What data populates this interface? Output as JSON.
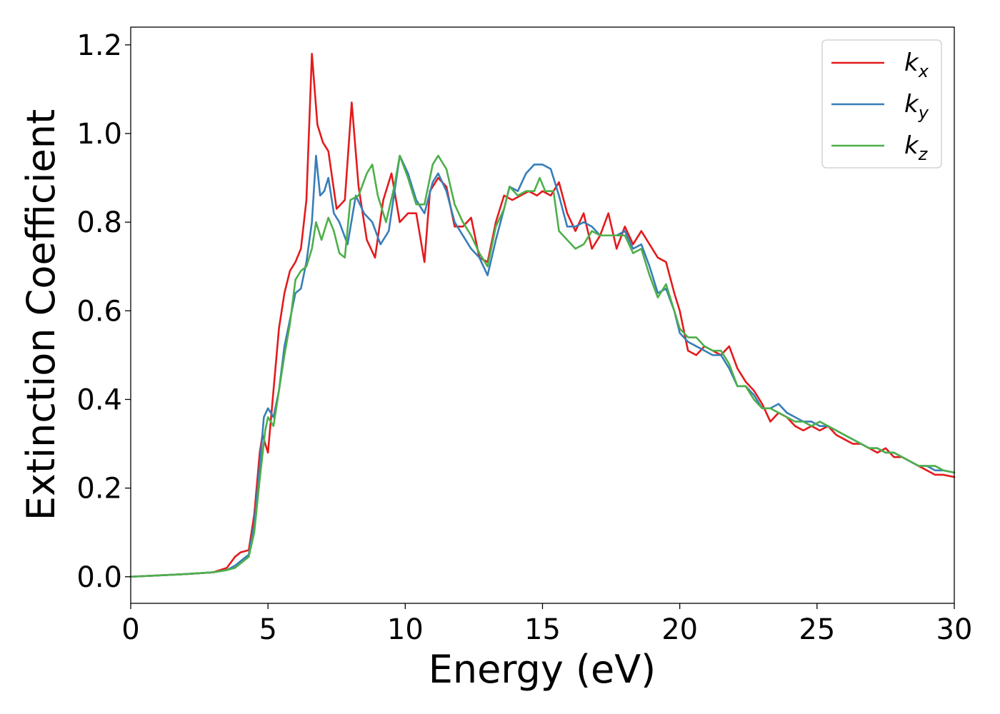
{
  "chart_data": {
    "type": "line",
    "title": "",
    "xlabel": "Energy (eV)",
    "ylabel": "Extinction Coefficient",
    "xlim": [
      0,
      30
    ],
    "ylim": [
      -0.06,
      1.24
    ],
    "xticks": [
      0,
      5,
      10,
      15,
      20,
      25,
      30
    ],
    "xtick_labels": [
      "0",
      "5",
      "10",
      "15",
      "20",
      "25",
      "30"
    ],
    "yticks": [
      0.0,
      0.2,
      0.4,
      0.6,
      0.8,
      1.0,
      1.2
    ],
    "ytick_labels": [
      "0.0",
      "0.2",
      "0.4",
      "0.6",
      "0.8",
      "1.0",
      "1.2"
    ],
    "grid": false,
    "legend_position": "top-right",
    "series": [
      {
        "name": "k",
        "subscript": "x",
        "color": "#e41a1c",
        "x": [
          0,
          1,
          2,
          3,
          3.5,
          3.8,
          4,
          4.3,
          4.5,
          4.7,
          4.8,
          5.0,
          5.2,
          5.4,
          5.6,
          5.8,
          6.0,
          6.2,
          6.4,
          6.6,
          6.8,
          7.0,
          7.2,
          7.5,
          7.8,
          8.05,
          8.3,
          8.6,
          8.9,
          9.2,
          9.5,
          9.8,
          10.1,
          10.4,
          10.7,
          10.9,
          11.2,
          11.5,
          11.8,
          12.1,
          12.4,
          12.7,
          13.0,
          13.3,
          13.6,
          13.9,
          14.2,
          14.5,
          14.8,
          15.0,
          15.3,
          15.6,
          15.9,
          16.2,
          16.5,
          16.8,
          17.1,
          17.4,
          17.7,
          18.0,
          18.3,
          18.6,
          18.9,
          19.2,
          19.5,
          19.8,
          20.0,
          20.3,
          20.6,
          20.9,
          21.2,
          21.5,
          21.8,
          22.1,
          22.4,
          22.7,
          23.0,
          23.3,
          23.6,
          23.9,
          24.2,
          24.5,
          24.8,
          25.1,
          25.4,
          25.7,
          26.0,
          26.3,
          26.6,
          26.9,
          27.2,
          27.5,
          27.8,
          28.1,
          28.4,
          28.7,
          29.0,
          29.3,
          29.6,
          30.0
        ],
        "y": [
          0.0,
          0.003,
          0.006,
          0.01,
          0.02,
          0.045,
          0.055,
          0.06,
          0.14,
          0.28,
          0.32,
          0.28,
          0.42,
          0.56,
          0.64,
          0.69,
          0.71,
          0.74,
          0.85,
          1.18,
          1.02,
          0.98,
          0.96,
          0.83,
          0.85,
          1.07,
          0.88,
          0.76,
          0.72,
          0.85,
          0.91,
          0.8,
          0.82,
          0.82,
          0.71,
          0.87,
          0.9,
          0.88,
          0.79,
          0.79,
          0.81,
          0.72,
          0.71,
          0.8,
          0.86,
          0.85,
          0.86,
          0.87,
          0.86,
          0.87,
          0.86,
          0.89,
          0.82,
          0.78,
          0.82,
          0.74,
          0.77,
          0.82,
          0.74,
          0.79,
          0.75,
          0.78,
          0.75,
          0.72,
          0.71,
          0.64,
          0.6,
          0.51,
          0.5,
          0.52,
          0.51,
          0.5,
          0.52,
          0.47,
          0.44,
          0.42,
          0.39,
          0.35,
          0.37,
          0.36,
          0.34,
          0.33,
          0.34,
          0.33,
          0.34,
          0.32,
          0.31,
          0.3,
          0.3,
          0.29,
          0.28,
          0.29,
          0.27,
          0.27,
          0.26,
          0.25,
          0.24,
          0.23,
          0.23,
          0.225
        ]
      },
      {
        "name": "k",
        "subscript": "y",
        "color": "#377eb8",
        "x": [
          0,
          1,
          2,
          3,
          3.5,
          3.8,
          4,
          4.3,
          4.5,
          4.7,
          4.85,
          5.0,
          5.2,
          5.4,
          5.6,
          5.8,
          6.0,
          6.2,
          6.4,
          6.6,
          6.75,
          6.9,
          7.05,
          7.2,
          7.4,
          7.6,
          7.9,
          8.2,
          8.5,
          8.8,
          9.1,
          9.4,
          9.8,
          10.1,
          10.4,
          10.7,
          11.0,
          11.2,
          11.5,
          11.8,
          12.1,
          12.4,
          12.7,
          13.0,
          13.3,
          13.6,
          13.8,
          14.1,
          14.4,
          14.7,
          15.0,
          15.3,
          15.6,
          15.9,
          16.2,
          16.5,
          16.8,
          17.1,
          17.4,
          17.7,
          18.0,
          18.3,
          18.6,
          18.9,
          19.2,
          19.5,
          19.8,
          20.0,
          20.3,
          20.6,
          20.9,
          21.2,
          21.5,
          21.8,
          22.1,
          22.4,
          22.7,
          23.0,
          23.3,
          23.6,
          23.9,
          24.2,
          24.5,
          24.8,
          25.1,
          25.4,
          25.7,
          26.0,
          26.3,
          26.6,
          26.9,
          27.2,
          27.5,
          27.8,
          28.1,
          28.4,
          28.7,
          29.0,
          29.3,
          29.6,
          30.0
        ],
        "y": [
          0.0,
          0.003,
          0.006,
          0.01,
          0.015,
          0.025,
          0.035,
          0.05,
          0.12,
          0.25,
          0.36,
          0.38,
          0.36,
          0.42,
          0.52,
          0.58,
          0.64,
          0.65,
          0.71,
          0.8,
          0.95,
          0.86,
          0.87,
          0.9,
          0.82,
          0.8,
          0.75,
          0.86,
          0.82,
          0.8,
          0.75,
          0.78,
          0.95,
          0.91,
          0.85,
          0.82,
          0.89,
          0.91,
          0.87,
          0.8,
          0.77,
          0.74,
          0.72,
          0.68,
          0.76,
          0.83,
          0.88,
          0.87,
          0.91,
          0.93,
          0.93,
          0.92,
          0.86,
          0.79,
          0.79,
          0.8,
          0.79,
          0.77,
          0.77,
          0.77,
          0.78,
          0.74,
          0.75,
          0.7,
          0.64,
          0.65,
          0.6,
          0.55,
          0.53,
          0.52,
          0.51,
          0.5,
          0.5,
          0.47,
          0.43,
          0.43,
          0.41,
          0.38,
          0.38,
          0.39,
          0.37,
          0.36,
          0.35,
          0.35,
          0.34,
          0.34,
          0.33,
          0.32,
          0.31,
          0.3,
          0.29,
          0.29,
          0.28,
          0.28,
          0.27,
          0.26,
          0.25,
          0.25,
          0.24,
          0.24,
          0.235
        ]
      },
      {
        "name": "k",
        "subscript": "z",
        "color": "#4daf4a",
        "x": [
          0,
          1,
          2,
          3,
          3.5,
          3.8,
          4,
          4.3,
          4.5,
          4.7,
          4.9,
          5.0,
          5.2,
          5.4,
          5.6,
          5.8,
          6.0,
          6.2,
          6.4,
          6.6,
          6.75,
          6.95,
          7.2,
          7.4,
          7.6,
          7.8,
          8.0,
          8.3,
          8.6,
          8.8,
          9.0,
          9.3,
          9.6,
          9.8,
          10.1,
          10.4,
          10.7,
          11.0,
          11.2,
          11.5,
          11.8,
          12.1,
          12.4,
          12.7,
          13.0,
          13.3,
          13.6,
          13.8,
          14.1,
          14.4,
          14.7,
          14.9,
          15.1,
          15.4,
          15.6,
          15.9,
          16.2,
          16.5,
          16.8,
          17.1,
          17.4,
          17.7,
          18.0,
          18.3,
          18.6,
          18.9,
          19.2,
          19.5,
          19.8,
          20.0,
          20.3,
          20.6,
          20.9,
          21.2,
          21.5,
          21.8,
          22.1,
          22.4,
          22.7,
          23.0,
          23.3,
          23.6,
          23.9,
          24.2,
          24.5,
          24.8,
          25.1,
          25.4,
          25.7,
          26.0,
          26.3,
          26.6,
          26.9,
          27.2,
          27.5,
          27.8,
          28.1,
          28.4,
          28.7,
          29.0,
          29.3,
          29.6,
          30.0
        ],
        "y": [
          0.0,
          0.003,
          0.006,
          0.01,
          0.015,
          0.02,
          0.03,
          0.045,
          0.1,
          0.22,
          0.33,
          0.36,
          0.34,
          0.42,
          0.5,
          0.57,
          0.67,
          0.69,
          0.7,
          0.74,
          0.8,
          0.76,
          0.81,
          0.78,
          0.73,
          0.72,
          0.85,
          0.86,
          0.91,
          0.93,
          0.86,
          0.8,
          0.88,
          0.95,
          0.9,
          0.84,
          0.84,
          0.93,
          0.95,
          0.92,
          0.84,
          0.8,
          0.77,
          0.73,
          0.7,
          0.79,
          0.83,
          0.88,
          0.86,
          0.87,
          0.87,
          0.9,
          0.87,
          0.87,
          0.78,
          0.76,
          0.74,
          0.75,
          0.78,
          0.77,
          0.77,
          0.77,
          0.77,
          0.73,
          0.74,
          0.68,
          0.63,
          0.66,
          0.6,
          0.56,
          0.54,
          0.54,
          0.52,
          0.51,
          0.51,
          0.48,
          0.43,
          0.43,
          0.4,
          0.38,
          0.38,
          0.37,
          0.36,
          0.35,
          0.35,
          0.34,
          0.35,
          0.34,
          0.33,
          0.32,
          0.31,
          0.3,
          0.29,
          0.29,
          0.28,
          0.28,
          0.27,
          0.26,
          0.25,
          0.25,
          0.25,
          0.24,
          0.235
        ]
      }
    ]
  }
}
